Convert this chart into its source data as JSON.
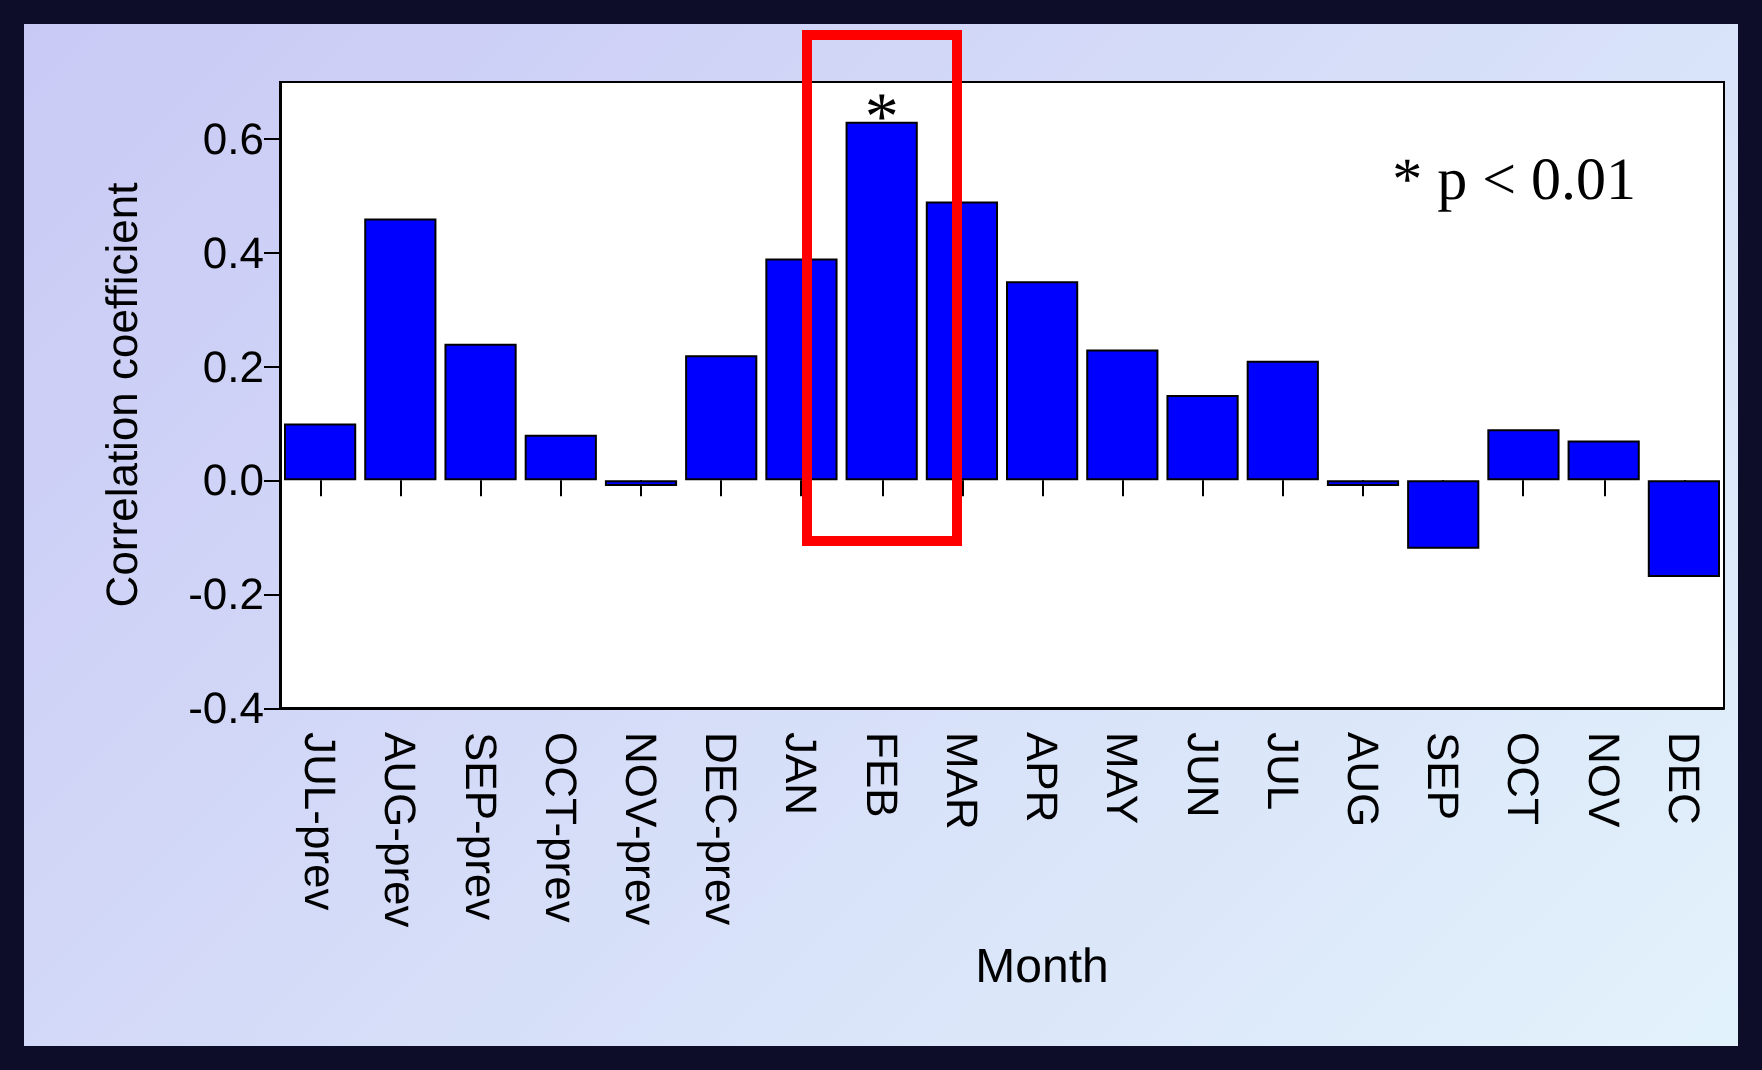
{
  "chart_data": {
    "type": "bar",
    "xlabel": "Month",
    "ylabel": "Correlation coefficient",
    "categories": [
      "JUL-prev",
      "AUG-prev",
      "SEP-prev",
      "OCT-prev",
      "NOV-prev",
      "DEC-prev",
      "JAN",
      "FEB",
      "MAR",
      "APR",
      "MAY",
      "JUN",
      "JUL",
      "AUG",
      "SEP",
      "OCT",
      "NOV",
      "DEC"
    ],
    "values": [
      0.1,
      0.46,
      0.24,
      0.08,
      -0.01,
      0.22,
      0.39,
      0.63,
      0.49,
      0.35,
      0.23,
      0.15,
      0.21,
      -0.01,
      -0.12,
      0.09,
      0.07,
      -0.17
    ],
    "color": "#0000ff",
    "ylim": [
      -0.4,
      0.7
    ],
    "yticks": [
      {
        "value": -0.4,
        "label": "-0.4"
      },
      {
        "value": -0.2,
        "label": "-0.2"
      },
      {
        "value": 0,
        "label": "0.0"
      },
      {
        "value": 0.2,
        "label": "0.2"
      },
      {
        "value": 0.4,
        "label": "0.4"
      },
      {
        "value": 0.6,
        "label": "0.6"
      }
    ],
    "annotations": [
      {
        "text": "*",
        "x": "FEB",
        "y": 0.63
      },
      "* p < 0.01"
    ]
  }
}
